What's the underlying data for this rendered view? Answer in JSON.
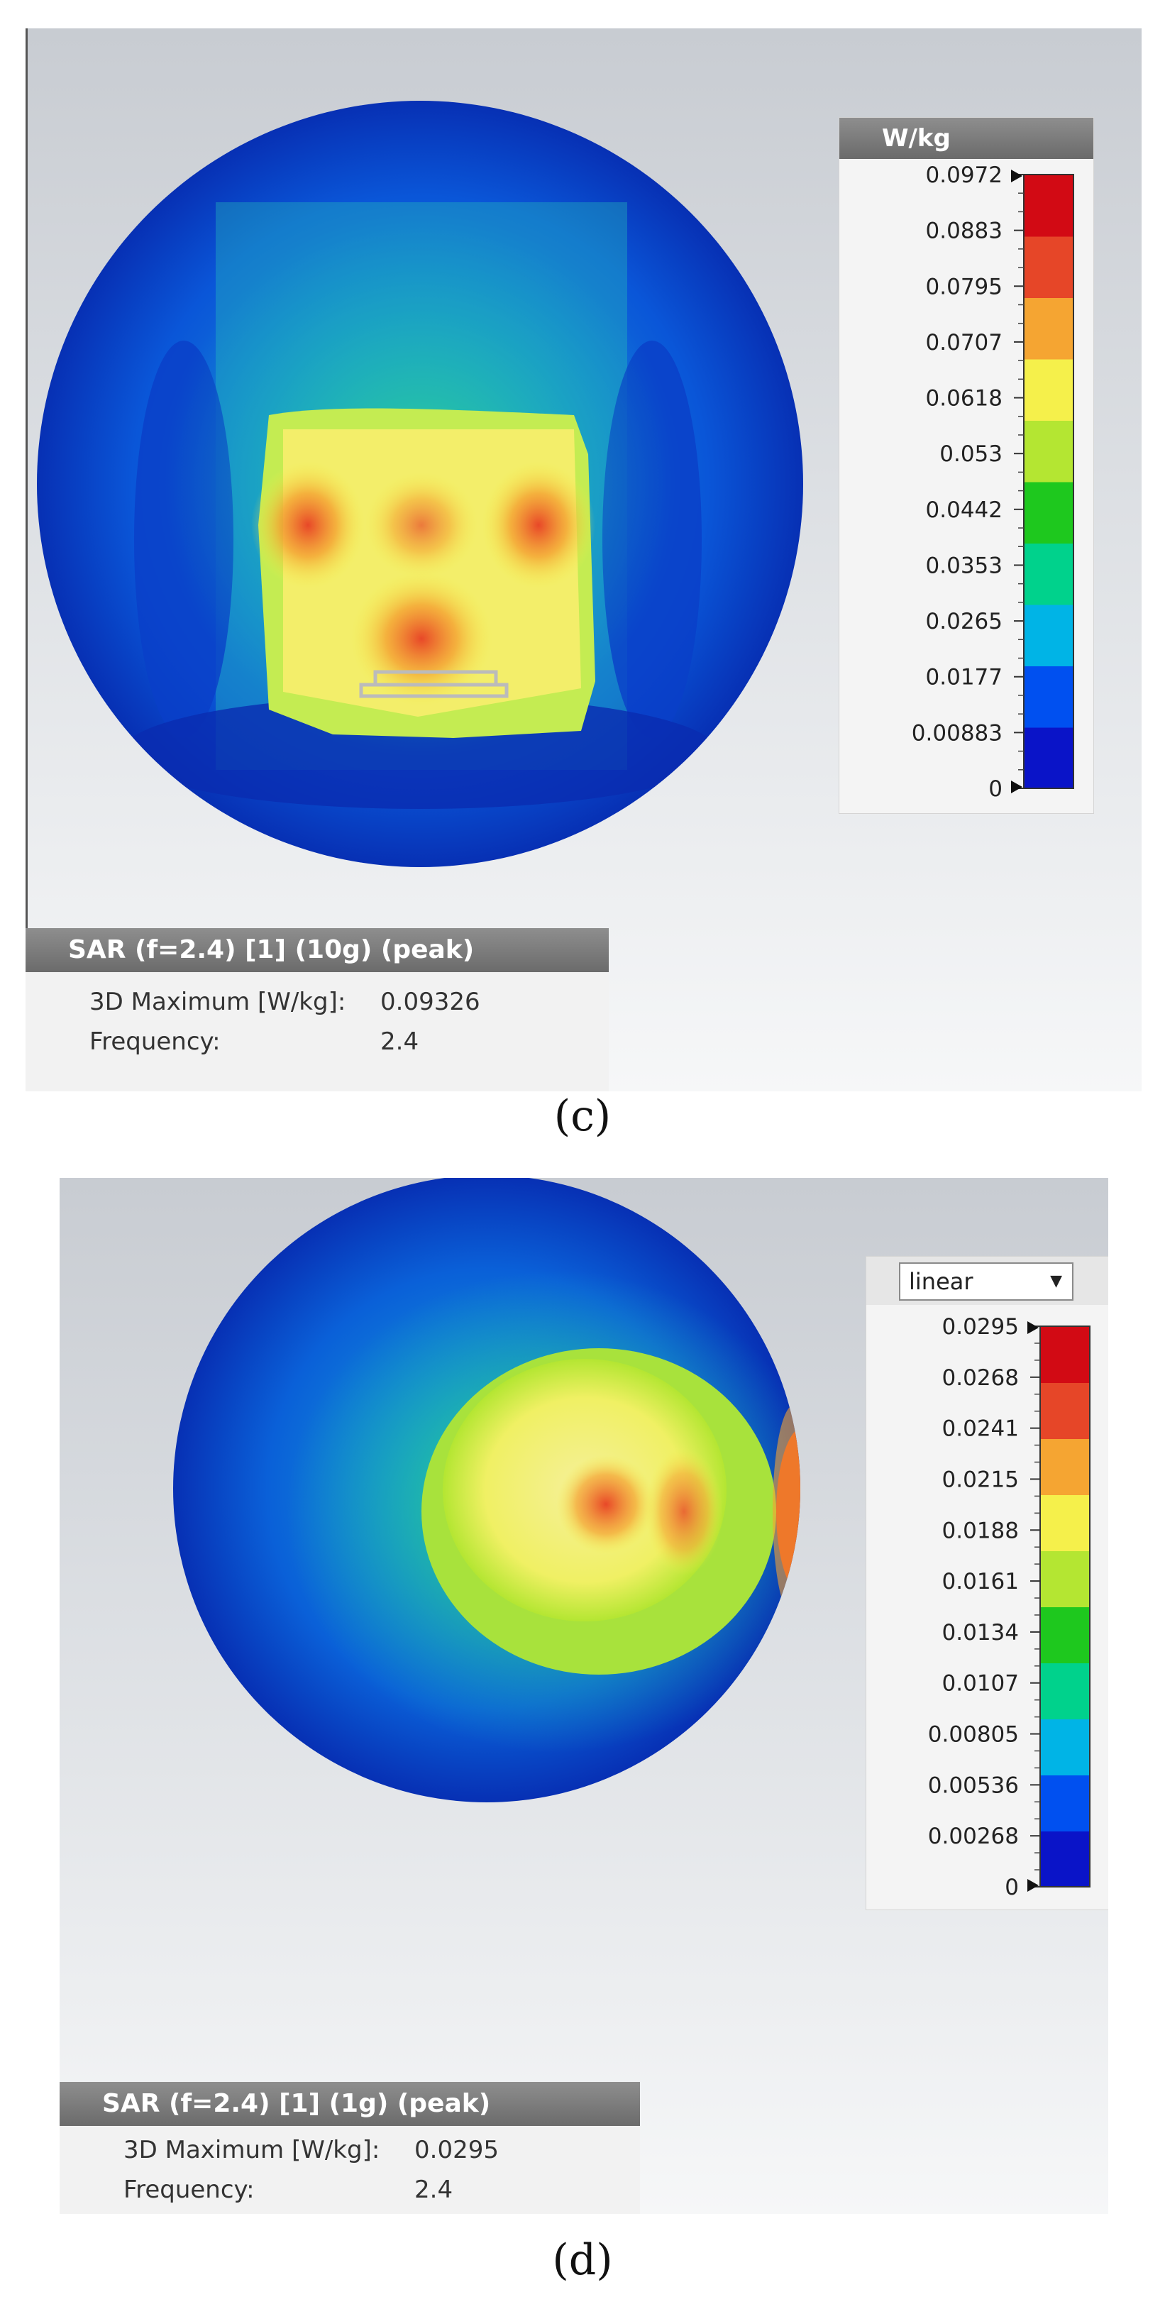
{
  "panel_c": {
    "legend": {
      "title": "W/kg",
      "ticks": [
        "0.0972",
        "0.0883",
        "0.0795",
        "0.0707",
        "0.0618",
        "0.053",
        "0.0442",
        "0.0353",
        "0.0265",
        "0.0177",
        "0.00883",
        "0"
      ]
    },
    "info": {
      "title": "SAR (f=2.4) [1] (10g) (peak)",
      "max_label": "3D Maximum [W/kg]:",
      "max_value": "0.09326",
      "freq_label": "Frequency:",
      "freq_value": "2.4"
    },
    "caption": "(c)"
  },
  "panel_d": {
    "legend": {
      "scale_select": "linear",
      "ticks": [
        "0.0295",
        "0.0268",
        "0.0241",
        "0.0215",
        "0.0188",
        "0.0161",
        "0.0134",
        "0.0107",
        "0.00805",
        "0.00536",
        "0.00268",
        "0"
      ]
    },
    "info": {
      "title": "SAR (f=2.4) [1] (1g) (peak)",
      "max_label": "3D Maximum [W/kg]:",
      "max_value": "0.0295",
      "freq_label": "Frequency:",
      "freq_value": "2.4"
    },
    "caption": "(d)"
  },
  "colormap": [
    "#0a14c8",
    "#0050f0",
    "#00b4e6",
    "#00d28c",
    "#1ec81e",
    "#b4e632",
    "#f5f04b",
    "#f5a532",
    "#e64628",
    "#d20a14"
  ]
}
